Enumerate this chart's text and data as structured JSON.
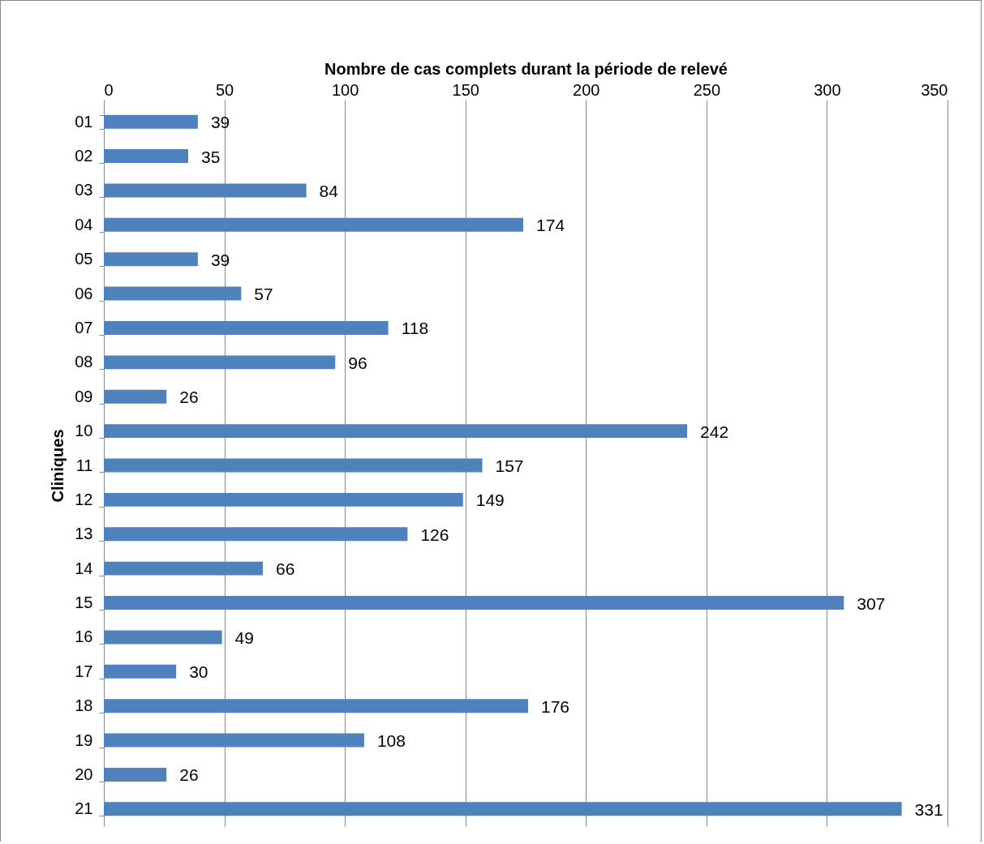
{
  "chart_data": {
    "type": "bar",
    "orientation": "horizontal",
    "xlabel": "Nombre de cas complets durant la période de relevé",
    "ylabel": "Cliniques",
    "categories": [
      "01",
      "02",
      "03",
      "04",
      "05",
      "06",
      "07",
      "08",
      "09",
      "10",
      "11",
      "12",
      "13",
      "14",
      "15",
      "16",
      "17",
      "18",
      "19",
      "20",
      "21"
    ],
    "values": [
      39,
      35,
      84,
      174,
      39,
      57,
      118,
      96,
      26,
      242,
      157,
      149,
      126,
      66,
      307,
      49,
      30,
      176,
      108,
      26,
      331
    ],
    "color": "#4f81bd",
    "xlim": [
      0,
      350
    ],
    "xticks": [
      0,
      50,
      100,
      150,
      200,
      250,
      300,
      350
    ],
    "grid": "x",
    "data_labels": true
  }
}
